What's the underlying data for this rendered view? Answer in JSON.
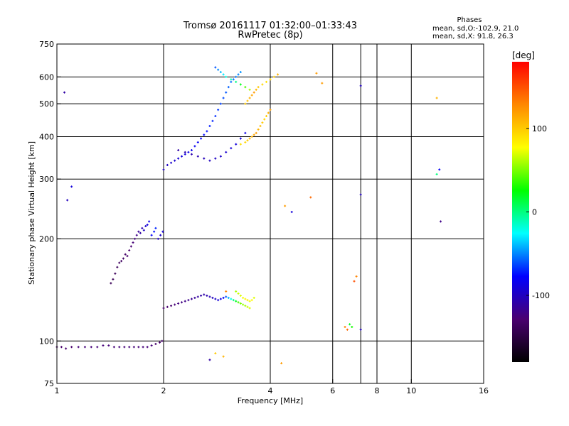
{
  "chart_data": {
    "type": "scatter",
    "title": "Tromsø 20161117 01:32:00–01:33:43",
    "subtitle": "RwPretec (8p)",
    "xlabel": "Frequency [MHz]",
    "ylabel": "Stationary phase Virtual Height [km]",
    "x_scale": "log",
    "y_scale": "log",
    "xlim": [
      1,
      16
    ],
    "ylim": [
      75,
      750
    ],
    "x_ticks": [
      1,
      2,
      4,
      6,
      8,
      10,
      16
    ],
    "x_tick_labels": [
      "1",
      "2",
      "4",
      "6",
      "8",
      "10",
      "16"
    ],
    "x_grid": [
      2,
      4,
      6,
      7.2,
      8,
      10
    ],
    "y_ticks": [
      75,
      100,
      200,
      300,
      400,
      500,
      600,
      750
    ],
    "y_tick_labels": [
      "75",
      "100",
      "200",
      "300",
      "400",
      "500",
      "600",
      "750"
    ],
    "grid": true,
    "stats": {
      "title": "Phases",
      "line1": "mean, sd,O:-102.9, 21.0",
      "line2": "mean, sd,X:  91.8, 26.3"
    },
    "colorbar": {
      "label": "[deg]",
      "range": [
        -180,
        180
      ],
      "ticks": [
        100,
        0,
        -100
      ],
      "tick_labels": [
        "100",
        "0",
        "-100"
      ],
      "stops": [
        "#000000",
        "#4a0070",
        "#0000ff",
        "#00ffff",
        "#00ff00",
        "#ffff00",
        "#ff8800",
        "#ff0000"
      ]
    },
    "series": [
      {
        "x": [
          1.0,
          1.03,
          1.06,
          1.1,
          1.15,
          1.2,
          1.25,
          1.3,
          1.35,
          1.4,
          1.45,
          1.5,
          1.55,
          1.6,
          1.65,
          1.7,
          1.75,
          1.8,
          1.85,
          1.9,
          1.95,
          1.98,
          1.42,
          1.44,
          1.46,
          1.48,
          1.5,
          1.52,
          1.54,
          1.56,
          1.58,
          1.6,
          1.62,
          1.64,
          1.66,
          1.68,
          1.7,
          1.72,
          1.74,
          1.76,
          1.78,
          1.8,
          1.82,
          1.85,
          1.88,
          1.9,
          1.93,
          1.96,
          1.99,
          2.0,
          2.05,
          2.1,
          2.15,
          2.2,
          2.25,
          2.3,
          2.35,
          2.4,
          2.45,
          2.5,
          2.55,
          2.6,
          2.65,
          2.7,
          2.75,
          2.8,
          2.85,
          2.9,
          2.95,
          3.0,
          3.05,
          3.1,
          3.15,
          3.2,
          3.25,
          3.3,
          3.35,
          3.4,
          3.45,
          3.5,
          3.2,
          3.25,
          3.3,
          3.35,
          3.4,
          3.45,
          3.5,
          3.55,
          3.6,
          2.0,
          2.05,
          2.1,
          2.15,
          2.2,
          2.25,
          2.3,
          2.35,
          2.4,
          2.45,
          2.5,
          2.55,
          2.6,
          2.65,
          2.7,
          2.75,
          2.8,
          2.85,
          2.9,
          2.95,
          3.0,
          3.05,
          3.1,
          3.15,
          3.2,
          3.25,
          3.3,
          2.2,
          2.3,
          2.4,
          2.5,
          2.6,
          2.7,
          2.8,
          2.9,
          3.0,
          3.1,
          3.2,
          3.3,
          3.4,
          3.3,
          3.4,
          3.45,
          3.5,
          3.55,
          3.6,
          3.65,
          3.7,
          3.75,
          3.8,
          3.85,
          3.9,
          3.95,
          4.0,
          3.4,
          3.45,
          3.5,
          3.55,
          3.6,
          3.65,
          3.7,
          3.8,
          3.9,
          4.0,
          4.1,
          4.2,
          2.8,
          2.85,
          2.9,
          2.95,
          3.0,
          3.1,
          3.2,
          3.3,
          3.4,
          3.5,
          1.05,
          1.07,
          1.1,
          5.4,
          5.6,
          7.2,
          7.2,
          6.5,
          6.6,
          6.7,
          6.8,
          7.2,
          4.6,
          4.4,
          11.8,
          11.8,
          12.0,
          12.1,
          6.9,
          7.0,
          4.3,
          5.2,
          2.7,
          2.8,
          2.95,
          3.0
        ],
        "y": [
          96,
          96,
          95,
          96,
          96,
          96,
          96,
          96,
          97,
          97,
          96,
          96,
          96,
          96,
          96,
          96,
          96,
          96,
          97,
          98,
          99,
          100,
          148,
          152,
          158,
          165,
          170,
          172,
          175,
          180,
          178,
          185,
          190,
          195,
          200,
          205,
          210,
          208,
          215,
          212,
          218,
          220,
          225,
          205,
          210,
          215,
          200,
          205,
          210,
          125,
          126,
          127,
          128,
          129,
          130,
          131,
          132,
          133,
          134,
          135,
          136,
          137,
          136,
          135,
          134,
          133,
          132,
          133,
          134,
          135,
          134,
          133,
          132,
          131,
          130,
          129,
          128,
          127,
          126,
          125,
          140,
          138,
          136,
          134,
          133,
          132,
          131,
          132,
          134,
          320,
          330,
          335,
          340,
          345,
          350,
          355,
          360,
          365,
          375,
          385,
          395,
          405,
          415,
          430,
          445,
          460,
          480,
          500,
          520,
          540,
          560,
          580,
          590,
          600,
          610,
          620,
          365,
          360,
          355,
          350,
          345,
          340,
          345,
          350,
          360,
          370,
          380,
          395,
          410,
          380,
          385,
          390,
          395,
          400,
          405,
          410,
          420,
          430,
          440,
          450,
          460,
          470,
          480,
          500,
          510,
          520,
          530,
          540,
          550,
          560,
          570,
          580,
          590,
          600,
          610,
          640,
          630,
          620,
          610,
          600,
          590,
          580,
          570,
          560,
          550,
          540,
          260,
          285,
          615,
          575,
          565,
          270,
          110,
          108,
          112,
          110,
          108,
          240,
          250,
          520,
          310,
          320,
          225,
          150,
          155,
          86,
          265,
          88,
          92,
          90,
          140
        ],
        "phase": [
          -130,
          -130,
          -130,
          -130,
          -125,
          -125,
          -125,
          -125,
          -125,
          -125,
          -125,
          -125,
          -125,
          -125,
          -125,
          -125,
          -125,
          -125,
          -125,
          -130,
          -130,
          -130,
          -140,
          -140,
          -138,
          -138,
          -136,
          -136,
          -134,
          -132,
          -130,
          -130,
          -128,
          -126,
          -124,
          -120,
          -115,
          -110,
          -105,
          -100,
          -95,
          -90,
          -85,
          -80,
          -75,
          -70,
          -100,
          -95,
          -90,
          -130,
          -130,
          -128,
          -126,
          -124,
          -122,
          -120,
          -118,
          -116,
          -114,
          -112,
          -110,
          -108,
          -106,
          -104,
          -100,
          -96,
          -92,
          -88,
          -80,
          -60,
          -40,
          -20,
          0,
          20,
          40,
          50,
          55,
          60,
          65,
          70,
          60,
          65,
          70,
          75,
          80,
          85,
          75,
          80,
          70,
          -100,
          -98,
          -96,
          -94,
          -92,
          -90,
          -88,
          -86,
          -84,
          -82,
          -80,
          -78,
          -76,
          -74,
          -72,
          -70,
          -68,
          -66,
          -64,
          -62,
          -60,
          -58,
          -56,
          -54,
          -52,
          -50,
          -48,
          -110,
          -108,
          -106,
          -104,
          -102,
          -100,
          -98,
          -96,
          -94,
          -92,
          -90,
          -88,
          -86,
          90,
          95,
          100,
          105,
          110,
          115,
          120,
          110,
          105,
          100,
          95,
          100,
          110,
          120,
          100,
          105,
          110,
          115,
          120,
          110,
          100,
          95,
          90,
          95,
          100,
          110,
          -60,
          -50,
          -40,
          -30,
          -20,
          -10,
          0,
          20,
          40,
          60,
          -110,
          -100,
          -90,
          120,
          120,
          -100,
          -100,
          130,
          140,
          20,
          30,
          -100,
          -90,
          120,
          110,
          0,
          -80,
          -120,
          150,
          130,
          120,
          140,
          -110,
          100,
          110,
          130
        ]
      }
    ]
  }
}
